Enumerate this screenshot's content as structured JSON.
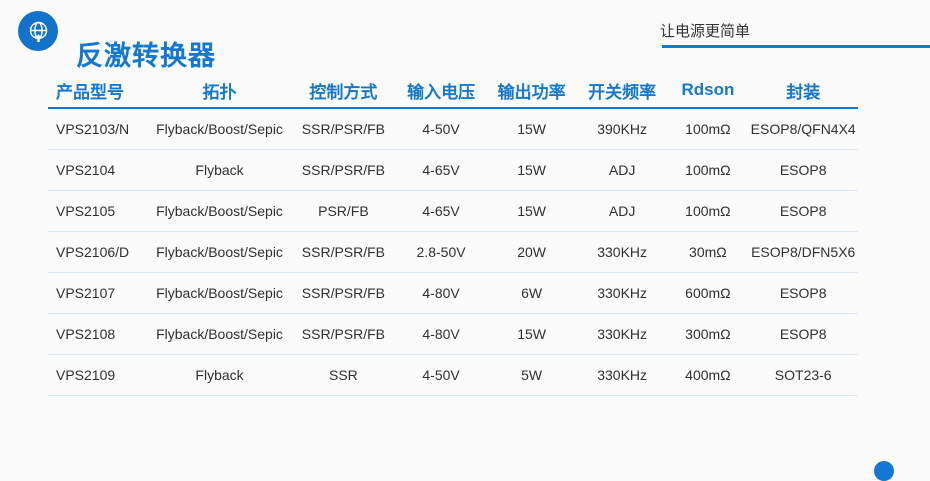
{
  "page": {
    "title": "反激转换器",
    "slogan": "让电源更简单",
    "accent_color": "#1377d4",
    "separator_color": "#dce8f6"
  },
  "logo": {
    "icon": "globe-icon",
    "background_color": "#1272cc"
  },
  "table": {
    "headers": [
      "产品型号",
      "拓扑",
      "控制方式",
      "输入电压",
      "输出功率",
      "开关频率",
      "Rdson",
      "封装"
    ],
    "rows": [
      [
        "VPS2103/N",
        "Flyback/Boost/Sepic",
        "SSR/PSR/FB",
        "4-50V",
        "15W",
        "390KHz",
        "100mΩ",
        "ESOP8/QFN4X4"
      ],
      [
        "VPS2104",
        "Flyback",
        "SSR/PSR/FB",
        "4-65V",
        "15W",
        "ADJ",
        "100mΩ",
        "ESOP8"
      ],
      [
        "VPS2105",
        "Flyback/Boost/Sepic",
        "PSR/FB",
        "4-65V",
        "15W",
        "ADJ",
        "100mΩ",
        "ESOP8"
      ],
      [
        "VPS2106/D",
        "Flyback/Boost/Sepic",
        "SSR/PSR/FB",
        "2.8-50V",
        "20W",
        "330KHz",
        "30mΩ",
        "ESOP8/DFN5X6"
      ],
      [
        "VPS2107",
        "Flyback/Boost/Sepic",
        "SSR/PSR/FB",
        "4-80V",
        "6W",
        "330KHz",
        "600mΩ",
        "ESOP8"
      ],
      [
        "VPS2108",
        "Flyback/Boost/Sepic",
        "SSR/PSR/FB",
        "4-80V",
        "15W",
        "330KHz",
        "300mΩ",
        "ESOP8"
      ],
      [
        "VPS2109",
        "Flyback",
        "SSR",
        "4-50V",
        "5W",
        "330KHz",
        "400mΩ",
        "SOT23-6"
      ]
    ]
  }
}
